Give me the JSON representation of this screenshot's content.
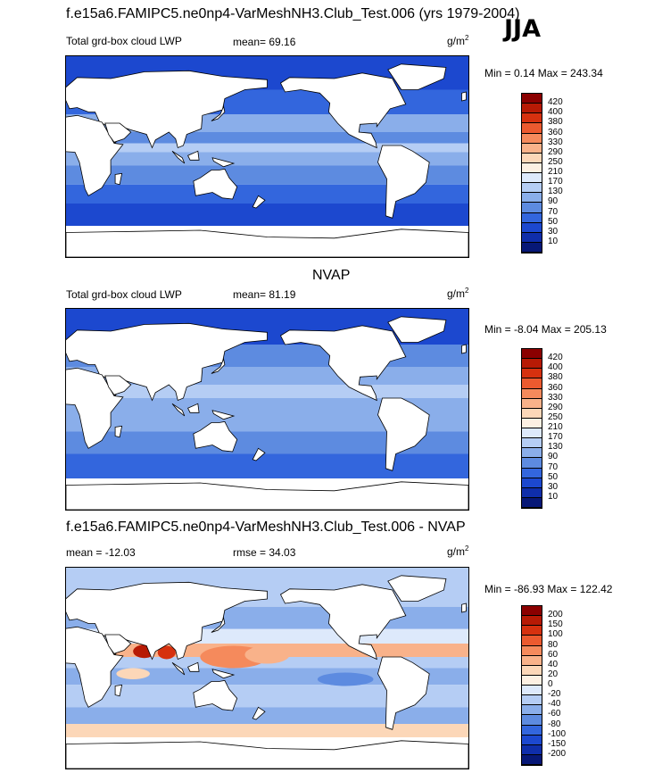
{
  "header": {
    "title": "f.e15a6.FAMIPC5.ne0np4-VarMeshNH3.Club_Test.006 (yrs 1979-2004)",
    "season": "JJA"
  },
  "panels": [
    {
      "id": "model",
      "field": "Total grd-box cloud LWP",
      "stat_label": "mean=  69.16",
      "units_base": "g/m",
      "units_exp": "2",
      "minmax": "Min =   0.14 Max = 243.34"
    },
    {
      "id": "obs",
      "section_title": "NVAP",
      "field": "Total grd-box cloud LWP",
      "stat_label": "mean=  81.19",
      "units_base": "g/m",
      "units_exp": "2",
      "minmax": "Min =  -8.04 Max = 205.13"
    },
    {
      "id": "diff",
      "section_title": "f.e15a6.FAMIPC5.ne0np4-VarMeshNH3.Club_Test.006 - NVAP",
      "field": "mean = -12.03",
      "stat_label": "rmse =  34.03",
      "units_base": "g/m",
      "units_exp": "2",
      "minmax": "Min = -86.93 Max = 122.42"
    }
  ],
  "chart_data": [
    {
      "type": "heatmap",
      "title": "Total grd-box cloud LWP",
      "subtitle": "mean=  69.16",
      "units": "g/m2",
      "min": 0.14,
      "max": 243.34,
      "mean": 69.16,
      "colorbar_levels": [
        420,
        400,
        380,
        360,
        330,
        290,
        250,
        210,
        170,
        130,
        90,
        70,
        50,
        30,
        10
      ],
      "colorbar_colors": [
        "#8b0000",
        "#b71a05",
        "#d6310f",
        "#ec5a2f",
        "#f58a5c",
        "#f9b28a",
        "#fcd7b8",
        "#fdf0e2",
        "#dde9fb",
        "#b5cdf4",
        "#8aaeea",
        "#5d8be0",
        "#3366dd",
        "#1c48cf",
        "#0f2eaa",
        "#071877"
      ]
    },
    {
      "type": "heatmap",
      "title": "Total grd-box cloud LWP",
      "subtitle": "mean=  81.19",
      "units": "g/m2",
      "min": -8.04,
      "max": 205.13,
      "mean": 81.19,
      "colorbar_levels": [
        420,
        400,
        380,
        360,
        330,
        290,
        250,
        210,
        170,
        130,
        90,
        70,
        50,
        30,
        10
      ],
      "colorbar_colors": [
        "#8b0000",
        "#b71a05",
        "#d6310f",
        "#ec5a2f",
        "#f58a5c",
        "#f9b28a",
        "#fcd7b8",
        "#fdf0e2",
        "#dde9fb",
        "#b5cdf4",
        "#8aaeea",
        "#5d8be0",
        "#3366dd",
        "#1c48cf",
        "#0f2eaa",
        "#071877"
      ]
    },
    {
      "type": "heatmap",
      "title": "f.e15a6.FAMIPC5.ne0np4-VarMeshNH3.Club_Test.006 - NVAP",
      "subtitle": "mean = -12.03",
      "units": "g/m2",
      "min": -86.93,
      "max": 122.42,
      "mean": -12.03,
      "rmse": 34.03,
      "colorbar_levels": [
        200,
        150,
        100,
        80,
        60,
        40,
        20,
        0,
        -20,
        -40,
        -60,
        -80,
        -100,
        -150,
        -200
      ],
      "colorbar_colors": [
        "#8b0000",
        "#b71a05",
        "#d6310f",
        "#ec5a2f",
        "#f58a5c",
        "#f9b28a",
        "#fcd7b8",
        "#fdf0e2",
        "#dde9fb",
        "#b5cdf4",
        "#8aaeea",
        "#5d8be0",
        "#3366dd",
        "#1c48cf",
        "#0f2eaa",
        "#071877"
      ]
    }
  ]
}
